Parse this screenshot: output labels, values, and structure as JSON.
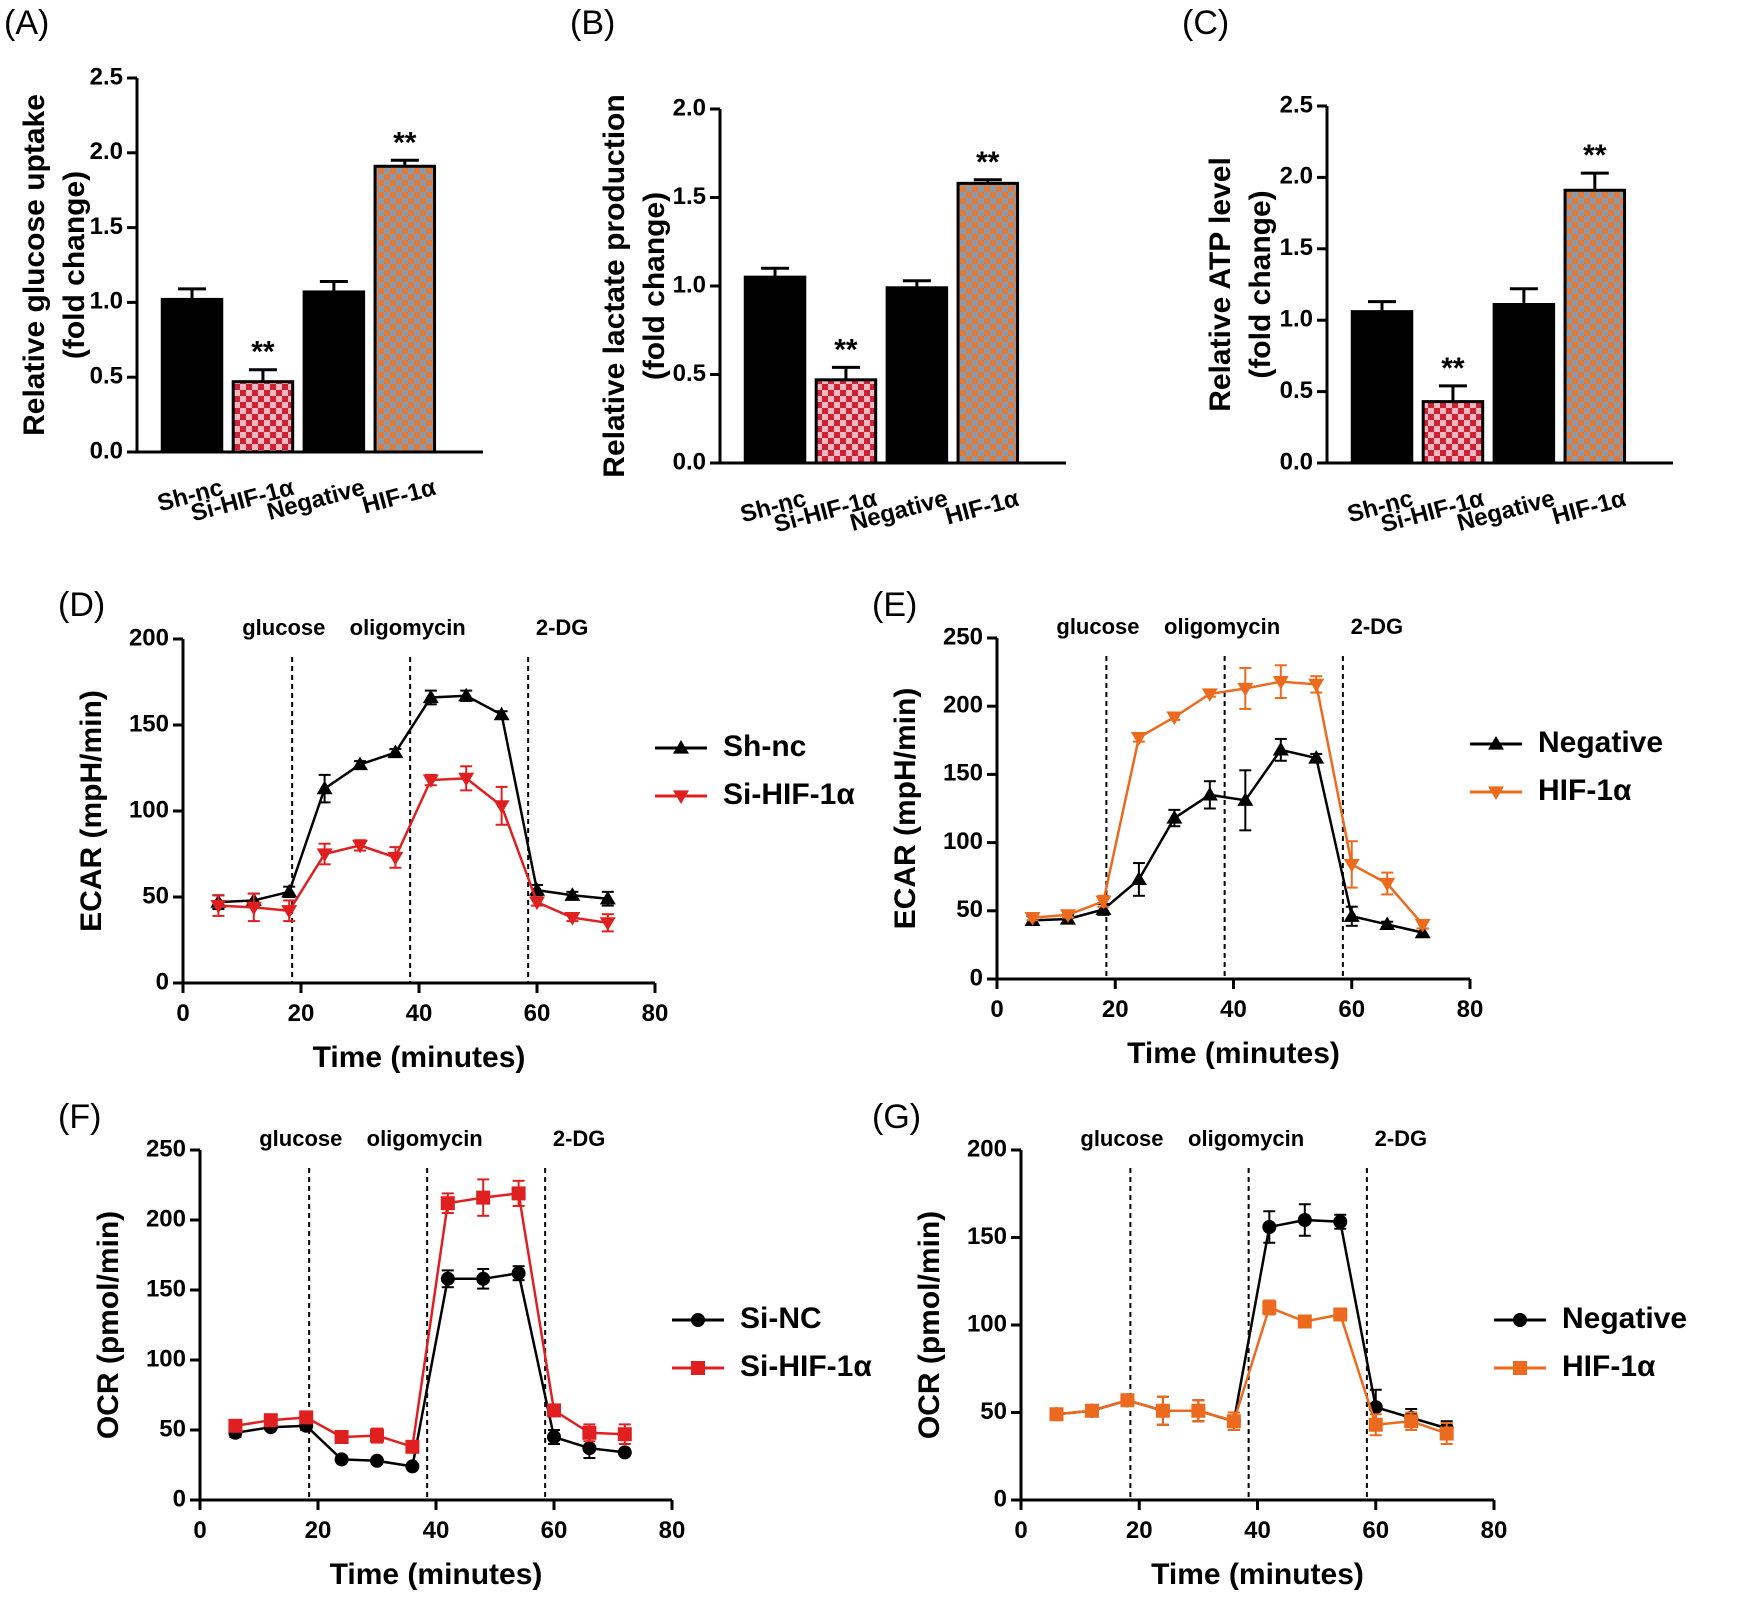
{
  "chart_data": [
    {
      "id": "A",
      "panel_label": "(A)",
      "type": "bar",
      "ylabel_line1": "Relative glucose uptake",
      "ylabel_line2": "(fold change)",
      "ylim": [
        0,
        2.5
      ],
      "yticks": [
        "0.0",
        "0.5",
        "1.0",
        "1.5",
        "2.0",
        "2.5"
      ],
      "categories": [
        "Sh-nc",
        "Si-HIF-1α",
        "Negative",
        "HIF-1α"
      ],
      "values": [
        1.02,
        0.47,
        1.07,
        1.91
      ],
      "errors": [
        0.07,
        0.08,
        0.07,
        0.04
      ],
      "significance": [
        "",
        "**",
        "",
        "**"
      ],
      "fills": [
        "#000000",
        "#cc2233",
        "#000000",
        "#e07a3a"
      ]
    },
    {
      "id": "B",
      "panel_label": "(B)",
      "type": "bar",
      "ylabel_line1": "Relative lactate production",
      "ylabel_line2": "(fold change)",
      "ylim": [
        0,
        2.0
      ],
      "yticks": [
        "0.0",
        "0.5",
        "1.0",
        "1.5",
        "2.0"
      ],
      "categories": [
        "Sh-nc",
        "Si-HIF-1α",
        "Negative",
        "HIF-1α"
      ],
      "values": [
        1.05,
        0.47,
        0.99,
        1.58
      ],
      "errors": [
        0.05,
        0.07,
        0.04,
        0.02
      ],
      "significance": [
        "",
        "**",
        "",
        "**"
      ],
      "fills": [
        "#000000",
        "#cc2233",
        "#000000",
        "#e07a3a"
      ]
    },
    {
      "id": "C",
      "panel_label": "(C)",
      "type": "bar",
      "ylabel_line1": "Relative ATP level",
      "ylabel_line2": "(fold change)",
      "ylim": [
        0,
        2.5
      ],
      "yticks": [
        "0.0",
        "0.5",
        "1.0",
        "1.5",
        "2.0",
        "2.5"
      ],
      "categories": [
        "Sh-nc",
        "Si-HIF-1α",
        "Negative",
        "HIF-1α"
      ],
      "values": [
        1.06,
        0.43,
        1.11,
        1.91
      ],
      "errors": [
        0.07,
        0.11,
        0.11,
        0.12
      ],
      "significance": [
        "",
        "**",
        "",
        "**"
      ],
      "fills": [
        "#000000",
        "#cc2233",
        "#000000",
        "#e07a3a"
      ]
    },
    {
      "id": "D",
      "panel_label": "(D)",
      "type": "line",
      "xlabel": "Time (minutes)",
      "ylabel": "ECAR (mpH/min)",
      "xlim": [
        0,
        80
      ],
      "ylim": [
        0,
        200
      ],
      "xticks": [
        "0",
        "20",
        "40",
        "60",
        "80"
      ],
      "yticks": [
        "0",
        "50",
        "100",
        "150",
        "200"
      ],
      "annotations": [
        {
          "text": "glucose",
          "x": 18.5
        },
        {
          "text": "oligomycin",
          "x": 38.5
        },
        {
          "text": "2-DG",
          "x": 58.5
        }
      ],
      "x": [
        6,
        12,
        18,
        24,
        30,
        36,
        42,
        48,
        54,
        60,
        66,
        72
      ],
      "series": [
        {
          "name": "Sh-nc",
          "color": "#000000",
          "marker": "triangle-up",
          "values": [
            47,
            48,
            53,
            113,
            127,
            134,
            166,
            167,
            156,
            54,
            51,
            49
          ],
          "errors": [
            4,
            4,
            3,
            8,
            2,
            2,
            4,
            3,
            2,
            3,
            2,
            4
          ]
        },
        {
          "name": "Si-HIF-1α",
          "color": "#e02020",
          "marker": "triangle-down",
          "values": [
            45,
            44,
            42,
            75,
            80,
            73,
            118,
            119,
            103,
            47,
            38,
            35
          ],
          "errors": [
            6,
            8,
            6,
            6,
            3,
            6,
            3,
            7,
            11,
            2,
            2,
            5
          ]
        }
      ]
    },
    {
      "id": "E",
      "panel_label": "(E)",
      "type": "line",
      "xlabel": "Time (minutes)",
      "ylabel": "ECAR (mpH/min)",
      "xlim": [
        0,
        80
      ],
      "ylim": [
        0,
        250
      ],
      "xticks": [
        "0",
        "20",
        "40",
        "60",
        "80"
      ],
      "yticks": [
        "0",
        "50",
        "100",
        "150",
        "200",
        "250"
      ],
      "annotations": [
        {
          "text": "glucose",
          "x": 18.5
        },
        {
          "text": "oligomycin",
          "x": 38.5
        },
        {
          "text": "2-DG",
          "x": 58.5
        }
      ],
      "x": [
        6,
        12,
        18,
        24,
        30,
        36,
        42,
        48,
        54,
        60,
        66,
        72
      ],
      "series": [
        {
          "name": "Negative",
          "color": "#000000",
          "marker": "triangle-up",
          "values": [
            43,
            44,
            51,
            73,
            118,
            135,
            131,
            168,
            162,
            46,
            40,
            34
          ],
          "errors": [
            3,
            3,
            4,
            12,
            6,
            10,
            22,
            8,
            3,
            7,
            2,
            3
          ]
        },
        {
          "name": "HIF-1α",
          "color": "#ec6a1e",
          "marker": "triangle-down",
          "values": [
            45,
            47,
            57,
            177,
            192,
            209,
            213,
            218,
            216,
            84,
            70,
            40
          ],
          "errors": [
            2,
            2,
            4,
            3,
            2,
            2,
            15,
            12,
            6,
            17,
            8,
            3
          ]
        }
      ]
    },
    {
      "id": "F",
      "panel_label": "(F)",
      "type": "line",
      "xlabel": "Time (minutes)",
      "ylabel": "OCR (pmol/min)",
      "xlim": [
        0,
        80
      ],
      "ylim": [
        0,
        250
      ],
      "xticks": [
        "0",
        "20",
        "40",
        "60",
        "80"
      ],
      "yticks": [
        "0",
        "50",
        "100",
        "150",
        "200",
        "250"
      ],
      "annotations": [
        {
          "text": "glucose",
          "x": 18.5
        },
        {
          "text": "oligomycin",
          "x": 38.5
        },
        {
          "text": "2-DG",
          "x": 58.5
        }
      ],
      "x": [
        6,
        12,
        18,
        24,
        30,
        36,
        42,
        48,
        54,
        60,
        66,
        72
      ],
      "series": [
        {
          "name": "Si-NC",
          "color": "#000000",
          "marker": "circle",
          "values": [
            48,
            52,
            53,
            29,
            28,
            24,
            158,
            158,
            162,
            45,
            37,
            34
          ],
          "errors": [
            3,
            2,
            3,
            2,
            2,
            2,
            6,
            7,
            5,
            5,
            7,
            2
          ]
        },
        {
          "name": "Si-HIF-1α",
          "color": "#e02020",
          "marker": "square",
          "values": [
            53,
            57,
            59,
            45,
            46,
            38,
            212,
            216,
            219,
            64,
            48,
            47
          ],
          "errors": [
            2,
            2,
            3,
            4,
            5,
            3,
            7,
            13,
            9,
            3,
            6,
            7
          ]
        }
      ]
    },
    {
      "id": "G",
      "panel_label": "(G)",
      "type": "line",
      "xlabel": "Time (minutes)",
      "ylabel": "OCR (pmol/min)",
      "xlim": [
        0,
        80
      ],
      "ylim": [
        0,
        200
      ],
      "xticks": [
        "0",
        "20",
        "40",
        "60",
        "80"
      ],
      "yticks": [
        "0",
        "50",
        "100",
        "150",
        "200"
      ],
      "annotations": [
        {
          "text": "glucose",
          "x": 18.5
        },
        {
          "text": "oligomycin",
          "x": 38.5
        },
        {
          "text": "2-DG",
          "x": 58.5
        }
      ],
      "x": [
        6,
        12,
        18,
        24,
        30,
        36,
        42,
        48,
        54,
        60,
        66,
        72
      ],
      "series": [
        {
          "name": "Negative",
          "color": "#000000",
          "marker": "circle",
          "values": [
            49,
            51,
            57,
            51,
            51,
            45,
            156,
            160,
            159,
            53,
            47,
            41
          ],
          "errors": [
            3,
            3,
            3,
            8,
            6,
            5,
            9,
            9,
            4,
            10,
            5,
            4
          ]
        },
        {
          "name": "HIF-1α",
          "color": "#ec6a1e",
          "marker": "square",
          "values": [
            49,
            51,
            57,
            51,
            51,
            45,
            110,
            102,
            106,
            43,
            45,
            38
          ],
          "errors": [
            3,
            3,
            3,
            8,
            6,
            5,
            4,
            2,
            2,
            6,
            5,
            6
          ]
        }
      ]
    }
  ]
}
